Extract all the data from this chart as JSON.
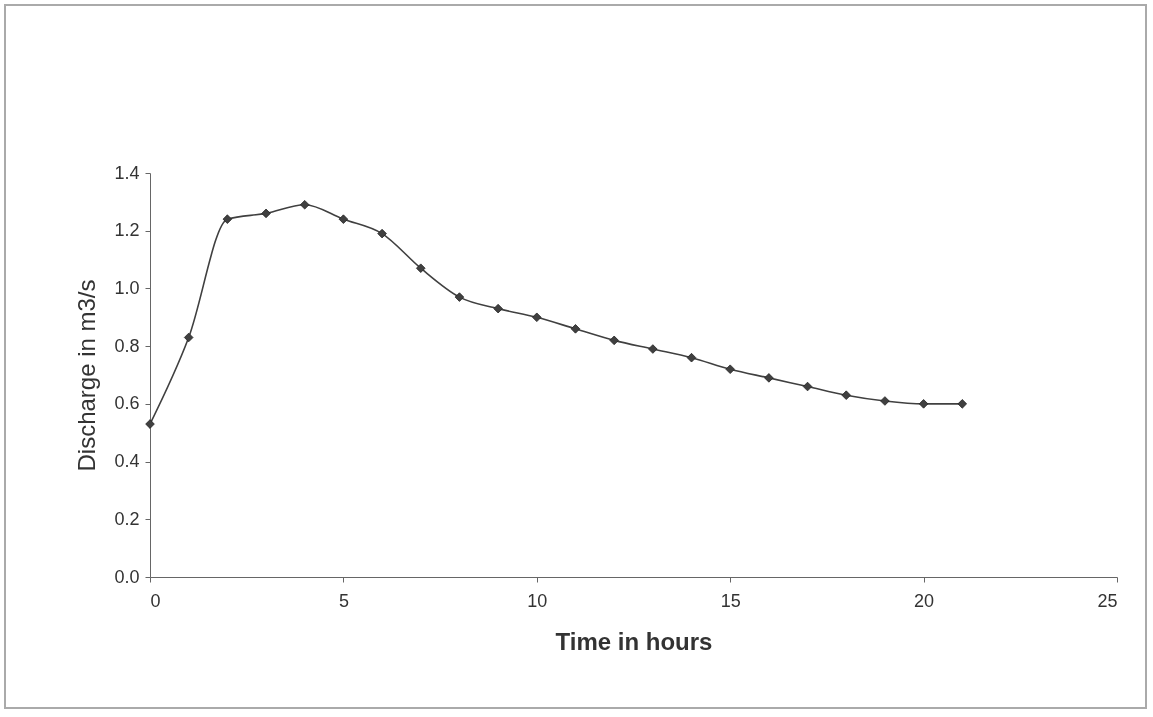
{
  "chart_data": {
    "type": "line",
    "xlabel": "Time in hours",
    "ylabel": "Discharge in m3/s",
    "x": [
      0,
      1,
      2,
      3,
      4,
      5,
      6,
      7,
      8,
      9,
      10,
      11,
      12,
      13,
      14,
      15,
      16,
      17,
      18,
      19,
      20,
      21
    ],
    "series": [
      {
        "color": "#404040",
        "values": [
          0.53,
          0.83,
          1.24,
          1.26,
          1.29,
          1.24,
          1.19,
          1.07,
          0.97,
          0.93,
          0.9,
          0.86,
          0.82,
          0.79,
          0.76,
          0.72,
          0.69,
          0.66,
          0.63,
          0.61,
          0.6,
          0.6
        ]
      }
    ],
    "xlim": [
      0,
      25
    ],
    "xticks": [
      0,
      5,
      10,
      15,
      20,
      25
    ],
    "ylim": [
      0,
      1.4
    ],
    "yticks": [
      {
        "value": 0,
        "label": "0.0"
      },
      0.2,
      0.4,
      0.6,
      0.8,
      {
        "value": 1,
        "label": "1.0"
      },
      1.2,
      1.4
    ],
    "grid": false,
    "marker": "diamond",
    "line_style": "solid"
  }
}
